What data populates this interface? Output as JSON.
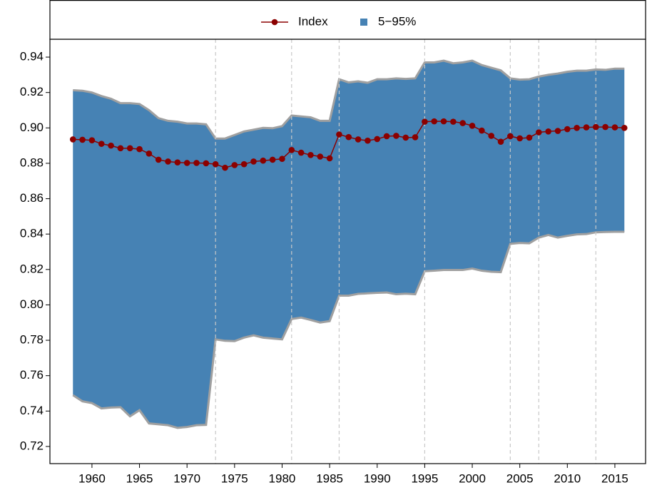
{
  "chart_data": {
    "type": "line-band",
    "x": [
      1958,
      1959,
      1960,
      1961,
      1962,
      1963,
      1964,
      1965,
      1966,
      1967,
      1968,
      1969,
      1970,
      1971,
      1972,
      1973,
      1974,
      1975,
      1976,
      1977,
      1978,
      1979,
      1980,
      1981,
      1982,
      1983,
      1984,
      1985,
      1986,
      1987,
      1988,
      1989,
      1990,
      1991,
      1992,
      1993,
      1994,
      1995,
      1996,
      1997,
      1998,
      1999,
      2000,
      2001,
      2002,
      2003,
      2004,
      2005,
      2006,
      2007,
      2008,
      2009,
      2010,
      2011,
      2012,
      2013,
      2014,
      2015,
      2016
    ],
    "series": [
      {
        "name": "Index",
        "color": "#8b0000",
        "values": [
          0.8935,
          0.8933,
          0.893,
          0.891,
          0.89,
          0.8885,
          0.8885,
          0.888,
          0.8855,
          0.882,
          0.881,
          0.8805,
          0.8802,
          0.8802,
          0.88,
          0.8795,
          0.8775,
          0.879,
          0.8795,
          0.881,
          0.8815,
          0.882,
          0.8825,
          0.8875,
          0.886,
          0.8847,
          0.8838,
          0.8828,
          0.8963,
          0.8948,
          0.8935,
          0.8928,
          0.8937,
          0.8953,
          0.8955,
          0.8945,
          0.8947,
          0.9035,
          0.9037,
          0.9037,
          0.9035,
          0.9027,
          0.9012,
          0.8985,
          0.8955,
          0.8922,
          0.8953,
          0.8941,
          0.8945,
          0.8975,
          0.898,
          0.8983,
          0.8993,
          0.9,
          0.9003,
          0.9005,
          0.9005,
          0.9003,
          0.9
        ]
      },
      {
        "name": "5−95%",
        "color": "#4682b4",
        "border": "#a0a0a0",
        "high": [
          0.9213,
          0.921,
          0.92,
          0.918,
          0.9165,
          0.914,
          0.914,
          0.9135,
          0.91,
          0.9055,
          0.904,
          0.9035,
          0.9025,
          0.9025,
          0.902,
          0.894,
          0.894,
          0.896,
          0.898,
          0.899,
          0.9,
          0.8998,
          0.901,
          0.907,
          0.9065,
          0.906,
          0.904,
          0.904,
          0.9275,
          0.9257,
          0.9263,
          0.9255,
          0.9275,
          0.9275,
          0.928,
          0.9277,
          0.928,
          0.937,
          0.937,
          0.938,
          0.9365,
          0.937,
          0.938,
          0.9355,
          0.934,
          0.9325,
          0.928,
          0.9273,
          0.9275,
          0.929,
          0.93,
          0.9307,
          0.9317,
          0.9323,
          0.9323,
          0.933,
          0.9328,
          0.9335,
          0.9335
        ],
        "low": [
          0.749,
          0.7455,
          0.7445,
          0.7415,
          0.742,
          0.7422,
          0.737,
          0.7405,
          0.733,
          0.7325,
          0.732,
          0.7305,
          0.731,
          0.732,
          0.7322,
          0.7805,
          0.7797,
          0.7795,
          0.7815,
          0.7828,
          0.7815,
          0.781,
          0.7805,
          0.792,
          0.7928,
          0.7915,
          0.79,
          0.7908,
          0.8052,
          0.8052,
          0.8062,
          0.8065,
          0.8068,
          0.807,
          0.806,
          0.8063,
          0.806,
          0.819,
          0.8193,
          0.8197,
          0.8197,
          0.8197,
          0.8205,
          0.8193,
          0.8187,
          0.8185,
          0.8345,
          0.835,
          0.8348,
          0.838,
          0.8395,
          0.838,
          0.839,
          0.8398,
          0.84,
          0.841,
          0.8412,
          0.8413,
          0.8413
        ]
      }
    ],
    "breaks": [
      1973,
      1981,
      1986,
      1995,
      2004,
      2007,
      2013
    ],
    "xlim": [
      1955.58,
      2018.23
    ],
    "xticks": [
      1960,
      1965,
      1970,
      1975,
      1980,
      1985,
      1990,
      1995,
      2000,
      2005,
      2010,
      2015
    ],
    "ylim": [
      0.7103,
      0.9501
    ],
    "yticks": [
      0.72,
      0.74,
      0.76,
      0.78,
      {
        "value": 0.8,
        "label": "0.80"
      },
      0.82,
      0.84,
      0.86,
      0.88,
      {
        "value": 0.9,
        "label": "0.90"
      },
      0.92,
      0.94
    ],
    "legend": "top"
  }
}
